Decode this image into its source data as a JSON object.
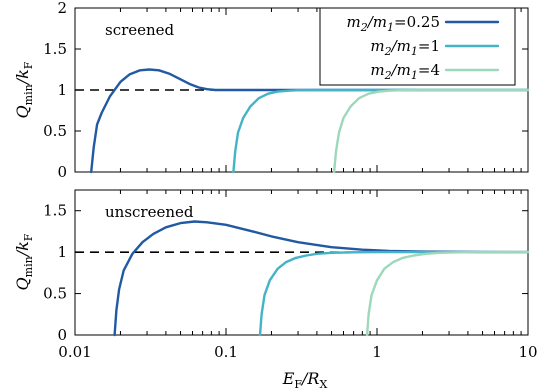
{
  "chart_data": {
    "type": "line",
    "xlabel": "E_F/R_X",
    "x_scale": "log",
    "xlim": [
      0.01,
      10
    ],
    "x_ticks": [
      {
        "value": 0.01,
        "label": "0.01"
      },
      {
        "value": 0.1,
        "label": "0.1"
      },
      {
        "value": 1,
        "label": "1"
      },
      {
        "value": 10,
        "label": "10"
      }
    ],
    "legend": {
      "placement": "top-right",
      "entries": [
        "m2/m1=0.25",
        "m2/m1=1",
        "m2/m1=4"
      ]
    },
    "reference_line_y": 1,
    "panels": [
      {
        "label": "screened",
        "ylabel": "Q_min/k_F",
        "ylim": [
          0,
          2
        ],
        "y_ticks": [
          {
            "value": 0,
            "label": "0"
          },
          {
            "value": 0.5,
            "label": "0.5"
          },
          {
            "value": 1,
            "label": "1"
          },
          {
            "value": 1.5,
            "label": "1.5"
          },
          {
            "value": 2,
            "label": "2"
          }
        ],
        "series": [
          {
            "name": "m2/m1=0.25",
            "color": "#2159a3",
            "x": [
              0.0128,
              0.0133,
              0.014,
              0.015,
              0.017,
              0.02,
              0.023,
              0.027,
              0.031,
              0.036,
              0.042,
              0.05,
              0.058,
              0.066,
              0.075,
              0.085,
              0.1,
              0.15,
              0.3,
              1,
              10
            ],
            "y": [
              0,
              0.3,
              0.58,
              0.72,
              0.92,
              1.1,
              1.19,
              1.24,
              1.25,
              1.24,
              1.2,
              1.13,
              1.07,
              1.03,
              1.01,
              1.0,
              1.0,
              1.0,
              1.0,
              1.0,
              1.0
            ]
          },
          {
            "name": "m2/m1=1",
            "color": "#43b3c8",
            "x": [
              0.112,
              0.115,
              0.12,
              0.13,
              0.145,
              0.165,
              0.19,
              0.22,
              0.26,
              0.3,
              0.4,
              0.6,
              1,
              3,
              10
            ],
            "y": [
              0,
              0.25,
              0.48,
              0.66,
              0.8,
              0.9,
              0.955,
              0.98,
              0.992,
              0.997,
              1.0,
              1.0,
              1.0,
              1.0,
              1.0
            ]
          },
          {
            "name": "m2/m1=4",
            "color": "#9ed8bb",
            "x": [
              0.52,
              0.535,
              0.56,
              0.6,
              0.67,
              0.76,
              0.88,
              1.03,
              1.2,
              1.45,
              2,
              3,
              5,
              10
            ],
            "y": [
              0,
              0.25,
              0.48,
              0.66,
              0.8,
              0.9,
              0.955,
              0.98,
              0.992,
              0.997,
              1.0,
              1.0,
              1.0,
              1.0
            ]
          }
        ]
      },
      {
        "label": "unscreened",
        "ylabel": "Q_min/k_F",
        "ylim": [
          0,
          1.75
        ],
        "y_ticks": [
          {
            "value": 0,
            "label": "0"
          },
          {
            "value": 0.5,
            "label": "0.5"
          },
          {
            "value": 1,
            "label": "1"
          },
          {
            "value": 1.5,
            "label": "1.5"
          }
        ],
        "series": [
          {
            "name": "m2/m1=0.25",
            "color": "#2159a3",
            "x": [
              0.0183,
              0.0188,
              0.0196,
              0.021,
              0.024,
              0.028,
              0.033,
              0.04,
              0.05,
              0.062,
              0.075,
              0.1,
              0.15,
              0.2,
              0.3,
              0.5,
              0.8,
              1.2,
              2,
              5,
              10
            ],
            "y": [
              0,
              0.3,
              0.55,
              0.78,
              0.98,
              1.12,
              1.22,
              1.3,
              1.35,
              1.37,
              1.36,
              1.33,
              1.25,
              1.19,
              1.12,
              1.06,
              1.03,
              1.015,
              1.007,
              1.002,
              1.0
            ]
          },
          {
            "name": "m2/m1=1",
            "color": "#43b3c8",
            "x": [
              0.168,
              0.172,
              0.18,
              0.195,
              0.22,
              0.25,
              0.29,
              0.34,
              0.4,
              0.5,
              0.7,
              1,
              2,
              5,
              10
            ],
            "y": [
              0,
              0.25,
              0.48,
              0.66,
              0.8,
              0.88,
              0.93,
              0.96,
              0.98,
              0.992,
              0.998,
              1.0,
              1.0,
              1.0,
              1.0
            ]
          },
          {
            "name": "m2/m1=4",
            "color": "#9ed8bb",
            "x": [
              0.86,
              0.88,
              0.92,
              1.0,
              1.12,
              1.28,
              1.48,
              1.75,
              2.1,
              2.6,
              3.5,
              5,
              10
            ],
            "y": [
              0,
              0.25,
              0.48,
              0.66,
              0.8,
              0.88,
              0.93,
              0.96,
              0.98,
              0.992,
              0.998,
              1.0,
              1.0
            ]
          }
        ]
      }
    ]
  }
}
